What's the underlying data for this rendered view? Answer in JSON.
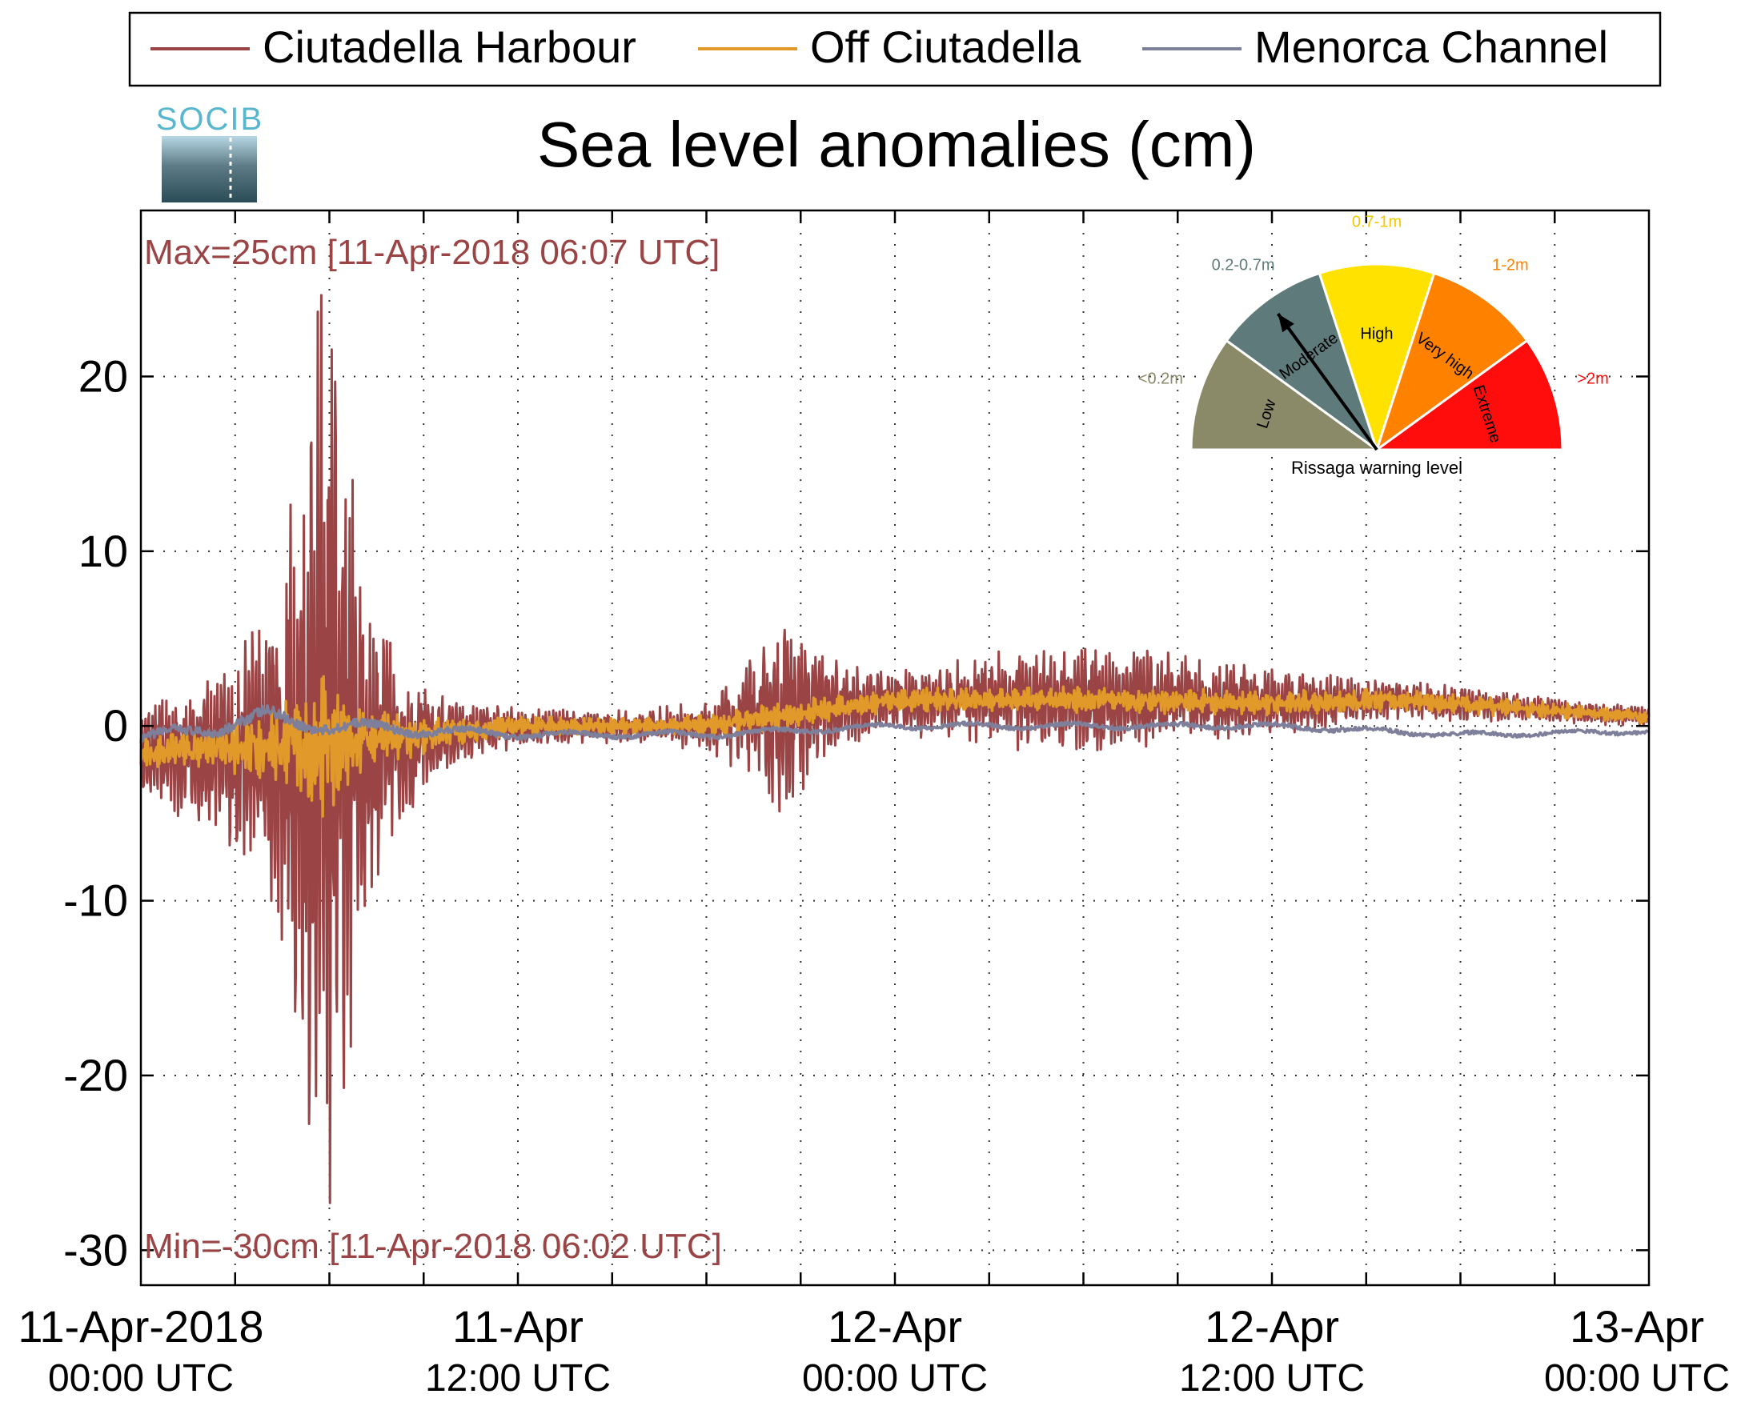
{
  "logo": {
    "text": "SOCIB"
  },
  "chart_data": {
    "type": "line",
    "title": "Sea level anomalies (cm)",
    "legend_position": "top",
    "grid": true,
    "xlim": [
      0,
      48
    ],
    "ylim": [
      -32,
      29.5
    ],
    "yticks": [
      -30,
      -20,
      -10,
      0,
      10,
      20
    ],
    "xticks": [
      {
        "hours": 0,
        "line1": "11-Apr-2018",
        "line2": "00:00 UTC"
      },
      {
        "hours": 12,
        "line1": "11-Apr",
        "line2": "12:00 UTC"
      },
      {
        "hours": 24,
        "line1": "12-Apr",
        "line2": "00:00 UTC"
      },
      {
        "hours": 36,
        "line1": "12-Apr",
        "line2": "12:00 UTC"
      },
      {
        "hours": 48,
        "line1": "13-Apr",
        "line2": "00:00 UTC"
      }
    ],
    "max_annotation": "Max=25cm [11-Apr-2018 06:07 UTC]",
    "min_annotation": "Min=-30cm [11-Apr-2018 06:02 UTC]",
    "series": [
      {
        "name": "Ciutadella Harbour",
        "color": "#9a4446",
        "envelope": {
          "hours": [
            0,
            1,
            2,
            3,
            3.5,
            4,
            4.5,
            5,
            5.5,
            5.9,
            6.1,
            6.5,
            7,
            7.5,
            8,
            9,
            10,
            11,
            12,
            14,
            16,
            18,
            19,
            20,
            20.5,
            21,
            21.5,
            22,
            23,
            24,
            26,
            28,
            30,
            32,
            34,
            36,
            38,
            40,
            42,
            44,
            46,
            48
          ],
          "amplitude": [
            2,
            4,
            4,
            6,
            8,
            7,
            12,
            18,
            26,
            28,
            28,
            22,
            14,
            9,
            6,
            3,
            2,
            1.5,
            1.2,
            1,
            1,
            1.5,
            3,
            5,
            6,
            5,
            4,
            3,
            2,
            2,
            2.5,
            3,
            3,
            3,
            2.5,
            2,
            1.5,
            1.2,
            1,
            0.8,
            0.7,
            0.6
          ]
        },
        "baseline": {
          "hours": [
            0,
            6,
            12,
            18,
            24,
            30,
            36,
            40,
            44,
            48
          ],
          "values": [
            -1.5,
            -1.5,
            0,
            0,
            1.5,
            1.5,
            1.3,
            1.5,
            1,
            0.5
          ]
        }
      },
      {
        "name": "Off Ciutadella",
        "color": "#e19a2a",
        "envelope": {
          "hours": [
            0,
            2,
            4,
            5,
            5.5,
            6,
            6.5,
            7,
            8,
            10,
            12,
            16,
            20,
            22,
            24,
            30,
            36,
            40,
            44,
            48
          ],
          "amplitude": [
            1,
            1,
            2,
            3,
            4,
            4.5,
            3,
            2,
            1.5,
            0.8,
            0.6,
            0.5,
            0.8,
            0.8,
            0.7,
            0.8,
            0.7,
            0.7,
            0.5,
            0.4
          ]
        },
        "baseline": {
          "hours": [
            0,
            6,
            12,
            18,
            24,
            30,
            36,
            40,
            44,
            48
          ],
          "values": [
            -1.5,
            -1,
            0,
            0,
            1.5,
            1.5,
            1.3,
            1.5,
            1,
            0.5
          ]
        }
      },
      {
        "name": "Menorca Channel",
        "color": "#7e7f9a",
        "envelope": {
          "hours": [
            0,
            4,
            6,
            8,
            12,
            24,
            36,
            48
          ],
          "amplitude": [
            0.5,
            0.7,
            0.6,
            0.5,
            0.3,
            0.25,
            0.25,
            0.2
          ]
        },
        "baseline": {
          "hours": [
            0,
            4,
            6,
            12,
            18,
            24,
            30,
            36,
            42,
            48
          ],
          "values": [
            -0.8,
            0.5,
            0,
            -0.5,
            -0.5,
            0,
            0,
            0,
            -0.5,
            -0.3
          ]
        }
      }
    ]
  },
  "gauge": {
    "caption": "Rissaga warning level",
    "segments": [
      {
        "label": "Low",
        "range": "<0.2m",
        "color": "#8a8a68",
        "text_color": "#8a8a68"
      },
      {
        "label": "Moderate",
        "range": "0.2-0.7m",
        "color": "#5f7a7a",
        "text_color": "#5f7a7a"
      },
      {
        "label": "High",
        "range": "0.7-1m",
        "color": "#ffe200",
        "text_color": "#f4c800"
      },
      {
        "label": "Very high",
        "range": "1-2m",
        "color": "#ff8100",
        "text_color": "#ff8100"
      },
      {
        "label": "Extreme",
        "range": ">2m",
        "color": "#ff0d0d",
        "text_color": "#ff0d0d"
      }
    ],
    "needle_level": "Moderate"
  }
}
